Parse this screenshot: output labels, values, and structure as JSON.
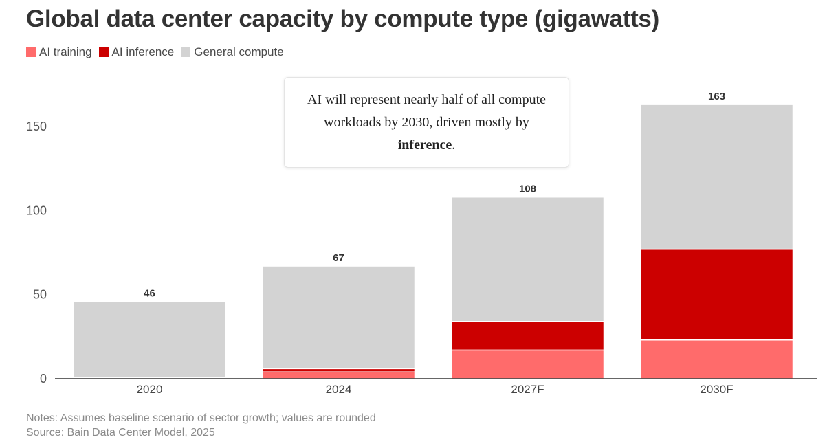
{
  "colors": {
    "ai_training": "#ff6b6b",
    "ai_inference": "#cc0000",
    "general_compute": "#d3d3d3"
  },
  "callout": {
    "text_before": "AI will represent nearly half of all compute workloads by 2030, driven mostly by ",
    "text_bold": "inference",
    "text_after": "."
  },
  "notes": {
    "line1": "Notes: Assumes baseline scenario of sector growth; values are rounded",
    "line2": "Source: Bain Data Center Model, 2025"
  },
  "chart_data": {
    "type": "bar",
    "stacked": true,
    "title": "Global data center capacity by compute type (gigawatts)",
    "xlabel": "",
    "ylabel": "",
    "categories": [
      "2020",
      "2024",
      "2027F",
      "2030F"
    ],
    "series": [
      {
        "name": "AI training",
        "color_key": "ai_training",
        "values": [
          0.3,
          4,
          17,
          23
        ]
      },
      {
        "name": "AI inference",
        "color_key": "ai_inference",
        "values": [
          0.3,
          2,
          17,
          54
        ]
      },
      {
        "name": "General compute",
        "color_key": "general_compute",
        "values": [
          45.4,
          61,
          74,
          86
        ]
      }
    ],
    "totals": [
      46,
      67,
      108,
      163
    ],
    "total_labels": [
      "46",
      "67",
      "108",
      "163"
    ],
    "yticks": [
      0,
      50,
      100,
      150
    ],
    "ytick_labels": [
      "0",
      "50",
      "100",
      "150"
    ],
    "ylim": [
      0,
      176
    ],
    "legend_position": "top-left",
    "grid": false
  }
}
